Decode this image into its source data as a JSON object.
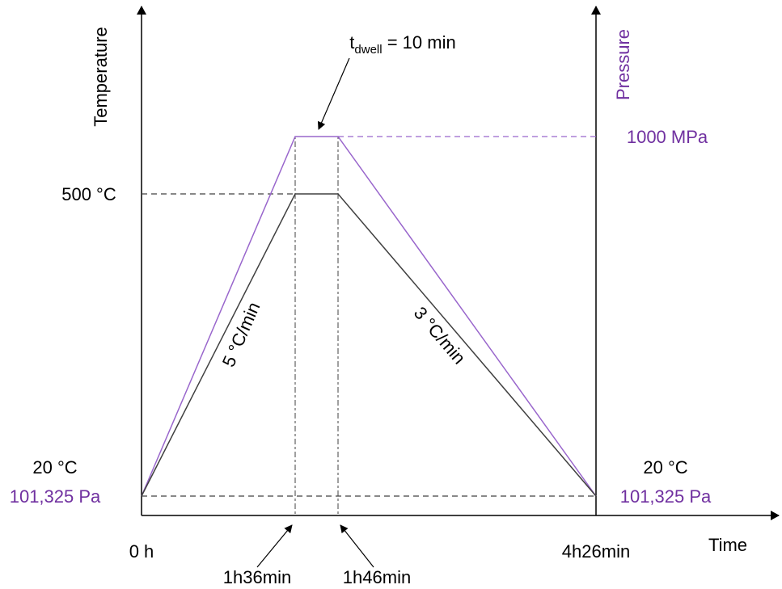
{
  "colors": {
    "temperature": "#404040",
    "pressure": "#9966cc",
    "pressure_text": "#7030a0",
    "axis": "#000000",
    "guide": "#404040"
  },
  "axes": {
    "left_title": "Temperature",
    "right_title": "Pressure",
    "x_title": "Time"
  },
  "labels": {
    "temp_high": "500 °C",
    "temp_low_left": "20 °C",
    "temp_low_right": "20 °C",
    "pressure_high": "1000 MPa",
    "pressure_low_left": "101,325 Pa",
    "pressure_low_right": "101,325 Pa",
    "time_start": "0 h",
    "time_ramp_end": "1h36min",
    "time_dwell_end": "1h46min",
    "time_end": "4h26min",
    "heating_rate": "5 °C/min",
    "cooling_rate": "3 °C/min",
    "dwell_t": "t",
    "dwell_sub": "dwell",
    "dwell_value": " = 10 min"
  },
  "chart_data": {
    "type": "line",
    "x_unit": "min",
    "x_ticks": [
      {
        "value": 0,
        "label": "0 h"
      },
      {
        "value": 96,
        "label": "1h36min"
      },
      {
        "value": 106,
        "label": "1h46min"
      },
      {
        "value": 266,
        "label": "4h26min"
      }
    ],
    "series": [
      {
        "name": "Temperature",
        "unit": "°C",
        "x": [
          0,
          96,
          106,
          266
        ],
        "y": [
          20,
          500,
          500,
          20
        ]
      },
      {
        "name": "Pressure",
        "x": [
          0,
          96,
          106,
          266
        ],
        "y_labels": [
          "101,325 Pa",
          "1000 MPa",
          "1000 MPa",
          "101,325 Pa"
        ]
      }
    ],
    "annotations": [
      "5 °C/min",
      "3 °C/min",
      "t dwell = 10 min"
    ]
  }
}
